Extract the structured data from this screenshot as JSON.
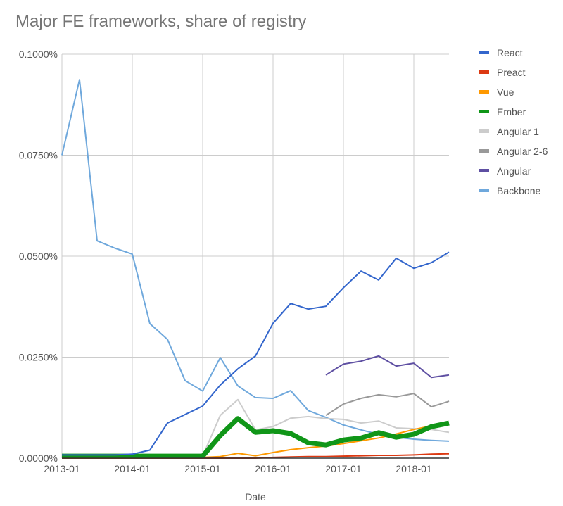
{
  "chart_data": {
    "type": "line",
    "title": "Major FE frameworks, share of registry",
    "xlabel": "Date",
    "ylabel": "",
    "ylim": [
      0,
      0.1
    ],
    "y_unit": "%",
    "legend_position": "right",
    "grid": true,
    "yticks": [
      "0.0000%",
      "0.0250%",
      "0.0500%",
      "0.0750%",
      "0.1000%"
    ],
    "ytick_values": [
      0,
      0.025,
      0.05,
      0.075,
      0.1
    ],
    "xticks": [
      "2013-01",
      "2014-01",
      "2015-01",
      "2016-01",
      "2017-01",
      "2018-01"
    ],
    "x": [
      "2013-01",
      "2013-04",
      "2013-07",
      "2013-10",
      "2014-01",
      "2014-04",
      "2014-07",
      "2014-10",
      "2015-01",
      "2015-04",
      "2015-07",
      "2015-10",
      "2016-01",
      "2016-04",
      "2016-07",
      "2016-10",
      "2017-01",
      "2017-04",
      "2017-07",
      "2017-10",
      "2018-01",
      "2018-04",
      "2018-07"
    ],
    "series": [
      {
        "name": "React",
        "color": "#3366cc",
        "values": [
          0.0008,
          0.0008,
          0.0008,
          0.0008,
          0.001,
          0.002,
          0.0087,
          0.0108,
          0.0129,
          0.0181,
          0.0221,
          0.0253,
          0.0334,
          0.0383,
          0.0369,
          0.0376,
          0.0422,
          0.0463,
          0.0441,
          0.0495,
          0.047,
          0.0484,
          0.051
        ]
      },
      {
        "name": "Preact",
        "color": "#dc3912",
        "values": [
          0,
          0,
          0,
          0,
          0,
          0,
          0,
          0,
          0,
          0,
          0,
          0,
          0.0002,
          0.0003,
          0.0004,
          0.0004,
          0.0005,
          0.0006,
          0.0007,
          0.0007,
          0.0008,
          0.001,
          0.0011
        ]
      },
      {
        "name": "Vue",
        "color": "#ff9900",
        "values": [
          0,
          0,
          0,
          0,
          0,
          0,
          0.0008,
          0.0002,
          0.0002,
          0.0004,
          0.0012,
          0.0006,
          0.0014,
          0.0021,
          0.0026,
          0.003,
          0.0036,
          0.0043,
          0.005,
          0.006,
          0.0071,
          0.008,
          0.0085
        ]
      },
      {
        "name": "Ember",
        "color": "#109618",
        "values": [
          0.0005,
          0.0005,
          0.0005,
          0.0005,
          0.0005,
          0.0005,
          0.0005,
          0.0005,
          0.0005,
          0.0056,
          0.0098,
          0.0064,
          0.0068,
          0.0061,
          0.0038,
          0.0033,
          0.0045,
          0.005,
          0.0063,
          0.0052,
          0.0059,
          0.0078,
          0.0087
        ]
      },
      {
        "name": "Angular 1",
        "color": "#cccccc",
        "values": [
          0.0005,
          0.0005,
          0.0005,
          0.0005,
          0.0005,
          0.0005,
          0.0005,
          0.0005,
          0.0005,
          0.0106,
          0.0145,
          0.007,
          0.0078,
          0.0099,
          0.0103,
          0.0098,
          0.0096,
          0.0087,
          0.0092,
          0.0075,
          0.0073,
          0.0071,
          0.0064
        ]
      },
      {
        "name": "Angular 2-6",
        "color": "#999999",
        "values": [
          null,
          null,
          null,
          null,
          null,
          null,
          null,
          null,
          null,
          null,
          null,
          null,
          null,
          null,
          null,
          0.0106,
          0.0134,
          0.0148,
          0.0157,
          0.0152,
          0.016,
          0.0127,
          0.0141
        ]
      },
      {
        "name": "Angular",
        "color": "#5e4fa2",
        "values": [
          null,
          null,
          null,
          null,
          null,
          null,
          null,
          null,
          null,
          null,
          null,
          null,
          null,
          null,
          null,
          0.0206,
          0.0233,
          0.024,
          0.0253,
          0.0228,
          0.0235,
          0.02,
          0.0206
        ]
      },
      {
        "name": "Backbone",
        "color": "#6fa8dc",
        "values": [
          0.075,
          0.0937,
          0.0538,
          0.052,
          0.0505,
          0.0333,
          0.0294,
          0.0192,
          0.0166,
          0.0249,
          0.0179,
          0.015,
          0.0148,
          0.0167,
          0.0118,
          0.0101,
          0.0082,
          0.007,
          0.0059,
          0.0052,
          0.0047,
          0.0044,
          0.0042
        ]
      }
    ]
  }
}
